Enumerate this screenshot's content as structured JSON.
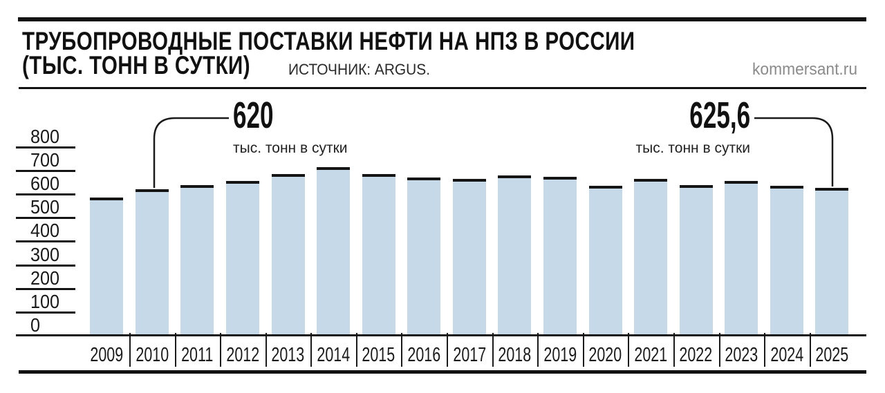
{
  "header": {
    "title_line1": "ТРУБОПРОВОДНЫЕ ПОСТАВКИ НЕФТИ НА НПЗ В РОССИИ",
    "title_line2": "(ТЫС. ТОНН В СУТКИ)",
    "source_label": "ИСТОЧНИК: ARGUS.",
    "site": "kommersant.ru"
  },
  "annotations": {
    "left": {
      "value": "620",
      "caption": "тыс. тонн в сутки",
      "target_year": "2010"
    },
    "right": {
      "value": "625,6",
      "caption": "тыс. тонн в сутки",
      "target_year": "2025"
    }
  },
  "chart_data": {
    "type": "bar",
    "title": "Трубопроводные поставки нефти на НПЗ в России",
    "unit": "тыс. тонн в сутки",
    "source": "Argus",
    "categories": [
      "2009",
      "2010",
      "2011",
      "2012",
      "2013",
      "2014",
      "2015",
      "2016",
      "2017",
      "2018",
      "2019",
      "2020",
      "2021",
      "2022",
      "2023",
      "2024",
      "2025"
    ],
    "values": [
      585,
      620,
      640,
      655,
      685,
      715,
      685,
      670,
      665,
      680,
      675,
      635,
      665,
      640,
      655,
      635,
      625.6
    ],
    "labeled_points": {
      "2010": 620,
      "2025": 625.6
    },
    "yticks": [
      800,
      700,
      600,
      500,
      400,
      300,
      200,
      100,
      0
    ],
    "ylim": [
      0,
      800
    ],
    "grid": "short-tick-lines-left",
    "legend": "none",
    "bar_color": "#c5d9e8",
    "bar_top_stroke_color": "#151515",
    "text_color": "#1a1a1a",
    "site_text_color": "#8b8b8b"
  }
}
